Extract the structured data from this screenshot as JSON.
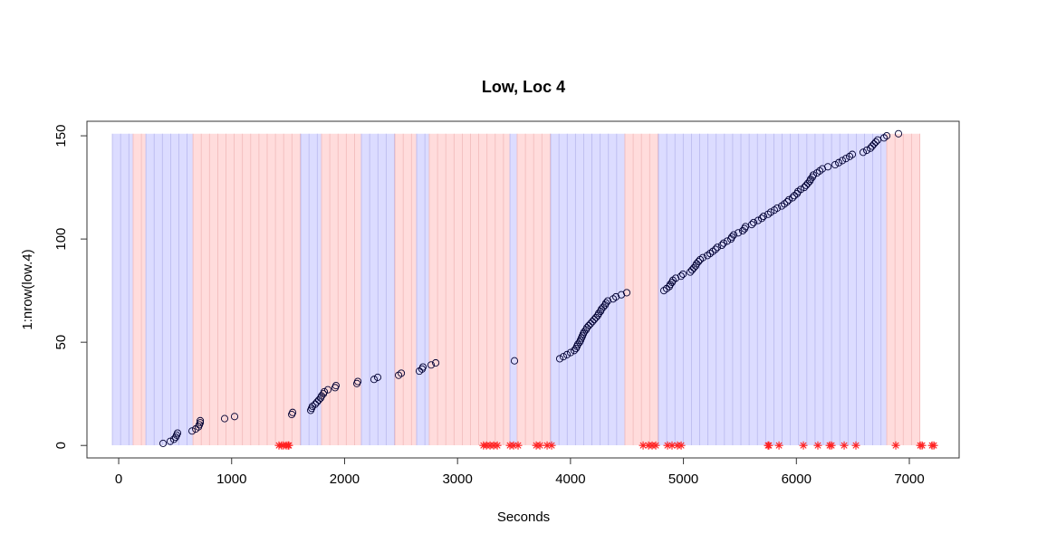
{
  "chart_data": {
    "type": "scatter",
    "title": "Low, Loc 4",
    "x_label": "Seconds",
    "y_label": "1:nrow(low.4)",
    "xlim": [
      -281,
      7441
    ],
    "ylim": [
      -6.04,
      157.04
    ],
    "xticks": [
      0,
      1000,
      2000,
      3000,
      4000,
      5000,
      6000,
      7000
    ],
    "yticks": [
      0,
      50,
      100,
      150
    ],
    "band_top": 151,
    "bands": [
      {
        "start": -56,
        "end": 128,
        "color": "blue"
      },
      {
        "start": 128,
        "end": 241,
        "color": "red"
      },
      {
        "start": 241,
        "end": 658,
        "color": "blue"
      },
      {
        "start": 658,
        "end": 1612,
        "color": "red"
      },
      {
        "start": 1612,
        "end": 1796,
        "color": "blue"
      },
      {
        "start": 1796,
        "end": 2149,
        "color": "red"
      },
      {
        "start": 2149,
        "end": 2446,
        "color": "blue"
      },
      {
        "start": 2446,
        "end": 2638,
        "color": "red"
      },
      {
        "start": 2638,
        "end": 2750,
        "color": "blue"
      },
      {
        "start": 2750,
        "end": 3464,
        "color": "red"
      },
      {
        "start": 3464,
        "end": 3528,
        "color": "blue"
      },
      {
        "start": 3528,
        "end": 3825,
        "color": "red"
      },
      {
        "start": 3825,
        "end": 4482,
        "color": "blue"
      },
      {
        "start": 4482,
        "end": 4779,
        "color": "red"
      },
      {
        "start": 4779,
        "end": 6800,
        "color": "blue"
      },
      {
        "start": 6800,
        "end": 7097,
        "color": "red"
      }
    ],
    "series": [
      {
        "marker": "circle",
        "color": "#000033",
        "x": [
          393,
          457,
          489,
          505,
          513,
          521,
          650,
          682,
          706,
          714,
          722,
          722,
          938,
          1026,
          1532,
          1540,
          1700,
          1708,
          1716,
          1740,
          1756,
          1772,
          1788,
          1796,
          1812,
          1820,
          1852,
          1916,
          1924,
          2109,
          2117,
          2261,
          2293,
          2478,
          2502,
          2662,
          2686,
          2694,
          2766,
          2807,
          3504,
          3905,
          3937,
          3969,
          4001,
          4033,
          4049,
          4057,
          4065,
          4081,
          4089,
          4097,
          4105,
          4113,
          4121,
          4137,
          4145,
          4161,
          4178,
          4194,
          4210,
          4226,
          4242,
          4250,
          4266,
          4274,
          4290,
          4306,
          4314,
          4330,
          4378,
          4402,
          4450,
          4498,
          4827,
          4851,
          4875,
          4883,
          4899,
          4907,
          4931,
          4979,
          4996,
          5060,
          5076,
          5092,
          5108,
          5116,
          5132,
          5148,
          5172,
          5212,
          5236,
          5260,
          5284,
          5300,
          5340,
          5356,
          5388,
          5421,
          5429,
          5445,
          5485,
          5525,
          5541,
          5549,
          5605,
          5621,
          5661,
          5693,
          5709,
          5749,
          5773,
          5805,
          5830,
          5870,
          5894,
          5918,
          5934,
          5966,
          5982,
          6006,
          6014,
          6038,
          6070,
          6086,
          6102,
          6118,
          6126,
          6142,
          6150,
          6182,
          6206,
          6230,
          6279,
          6343,
          6375,
          6407,
          6439,
          6471,
          6495,
          6591,
          6623,
          6655,
          6671,
          6687,
          6703,
          6720,
          6776,
          6800,
          6904
        ],
        "y": [
          1,
          2,
          3,
          4,
          5,
          6,
          7,
          8,
          9,
          10,
          11,
          12,
          13,
          14,
          15,
          16,
          17,
          18,
          19,
          20,
          21,
          22,
          23,
          24,
          25,
          26,
          27,
          28,
          29,
          30,
          31,
          32,
          33,
          34,
          35,
          36,
          37,
          38,
          39,
          40,
          41,
          42,
          43,
          44,
          45,
          46,
          47,
          48,
          49,
          50,
          51,
          52,
          53,
          54,
          55,
          56,
          57,
          58,
          59,
          60,
          61,
          62,
          63,
          64,
          65,
          66,
          67,
          68,
          69,
          70,
          71,
          72,
          73,
          74,
          75,
          76,
          77,
          78,
          79,
          80,
          81,
          82,
          83,
          84,
          85,
          86,
          87,
          88,
          89,
          90,
          91,
          92,
          93,
          94,
          95,
          96,
          97,
          98,
          99,
          100,
          101,
          102,
          103,
          104,
          105,
          106,
          107,
          108,
          109,
          110,
          111,
          112,
          113,
          114,
          115,
          116,
          117,
          118,
          119,
          120,
          121,
          122,
          123,
          124,
          125,
          126,
          127,
          128,
          129,
          130,
          131,
          132,
          133,
          134,
          135,
          136,
          137,
          138,
          139,
          140,
          141,
          142,
          143,
          144,
          145,
          146,
          147,
          148,
          149,
          150,
          151
        ]
      },
      {
        "marker": "asterisk",
        "color": "#ff2020",
        "x": [
          1419,
          1443,
          1459,
          1483,
          1500,
          1507,
          3230,
          3256,
          3288,
          3320,
          3352,
          3464,
          3496,
          3536,
          3697,
          3729,
          3793,
          3833,
          4643,
          4691,
          4723,
          4755,
          4859,
          4899,
          4947,
          4980,
          5749,
          5757,
          5846,
          6062,
          6190,
          6295,
          6311,
          6423,
          6527,
          6880,
          7097,
          7113,
          7201,
          7217
        ],
        "y": [
          0,
          0,
          0,
          0,
          0,
          0,
          0,
          0,
          0,
          0,
          0,
          0,
          0,
          0,
          0,
          0,
          0,
          0,
          0,
          0,
          0,
          0,
          0,
          0,
          0,
          0,
          0,
          0,
          0,
          0,
          0,
          0,
          0,
          0,
          0,
          0,
          0,
          0,
          0,
          0
        ]
      }
    ]
  }
}
